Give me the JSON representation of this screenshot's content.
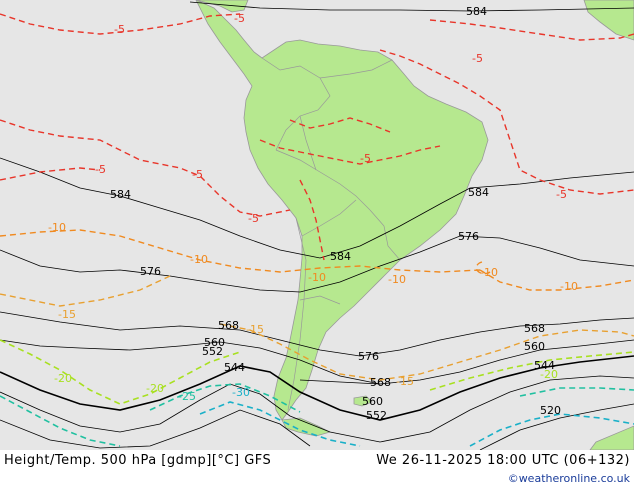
{
  "footer": {
    "title": "Height/Temp. 500 hPa [gdmp][°C] GFS",
    "valid_time": "We 26-11-2025 18:00 UTC (06+132)",
    "credit": "©weatheronline.co.uk"
  },
  "height_labels": [
    "584",
    "584",
    "584",
    "584",
    "576",
    "576",
    "576",
    "568",
    "568",
    "568",
    "560",
    "560",
    "560",
    "552",
    "552",
    "544",
    "544",
    "520"
  ],
  "temp_labels": [
    "-5",
    "-5",
    "-5",
    "-5",
    "-5",
    "-5",
    "-5",
    "-5",
    "-10",
    "-10",
    "-10",
    "-10",
    "-10",
    "-10",
    "-15",
    "-15",
    "-15",
    "-20",
    "-20",
    "-20",
    "-25",
    "-30"
  ],
  "colors": {
    "ocean": "#e6e6e6",
    "land": "#b6e88f",
    "border": "#999999",
    "height_contour": "#000000",
    "temp_m5": "#e8352a",
    "temp_m10": "#f08a20",
    "temp_m15": "#e8a030",
    "temp_m20": "#a8e020",
    "temp_m25": "#20c0a0",
    "temp_m30": "#1ab0c8"
  }
}
